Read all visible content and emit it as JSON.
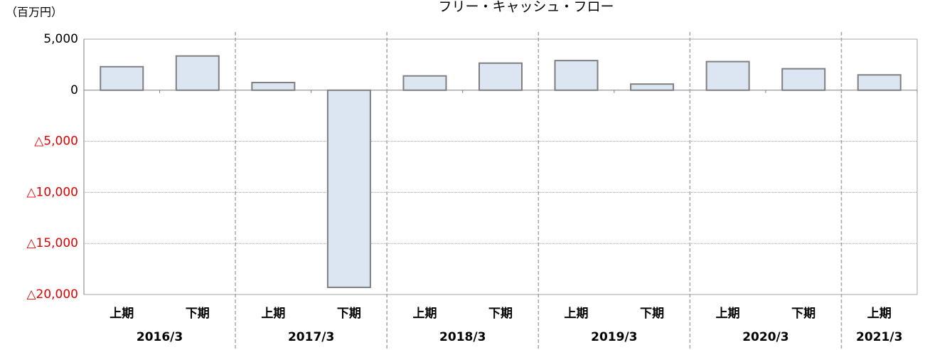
{
  "chart_data": {
    "type": "bar",
    "title": "フリー・キャッシュ・フロー",
    "y_axis_label": "（百万円）",
    "groups": [
      {
        "name": "2016/3",
        "categories": [
          "上期",
          "下期"
        ],
        "values": [
          2300,
          3350
        ]
      },
      {
        "name": "2017/3",
        "categories": [
          "上期",
          "下期"
        ],
        "values": [
          750,
          -19300
        ]
      },
      {
        "name": "2018/3",
        "categories": [
          "上期",
          "下期"
        ],
        "values": [
          1400,
          2650
        ]
      },
      {
        "name": "2019/3",
        "categories": [
          "上期",
          "下期"
        ],
        "values": [
          2900,
          600
        ]
      },
      {
        "name": "2020/3",
        "categories": [
          "上期",
          "下期"
        ],
        "values": [
          2800,
          2100
        ]
      },
      {
        "name": "2021/3",
        "categories": [
          "上期"
        ],
        "values": [
          1500
        ]
      }
    ],
    "color": "#dce6f2",
    "edge_color": "#7f7f7f",
    "negative_tick_color": "#e00000",
    "ylim": [
      -20000,
      5000
    ],
    "yticks": [
      {
        "value": -20000,
        "label": "△20,000"
      },
      {
        "value": -15000,
        "label": "△15,000"
      },
      {
        "value": -10000,
        "label": "△10,000"
      },
      {
        "value": -5000,
        "label": "△5,000"
      },
      0,
      {
        "value": 5000,
        "label": "5,000"
      }
    ],
    "grid": true
  }
}
